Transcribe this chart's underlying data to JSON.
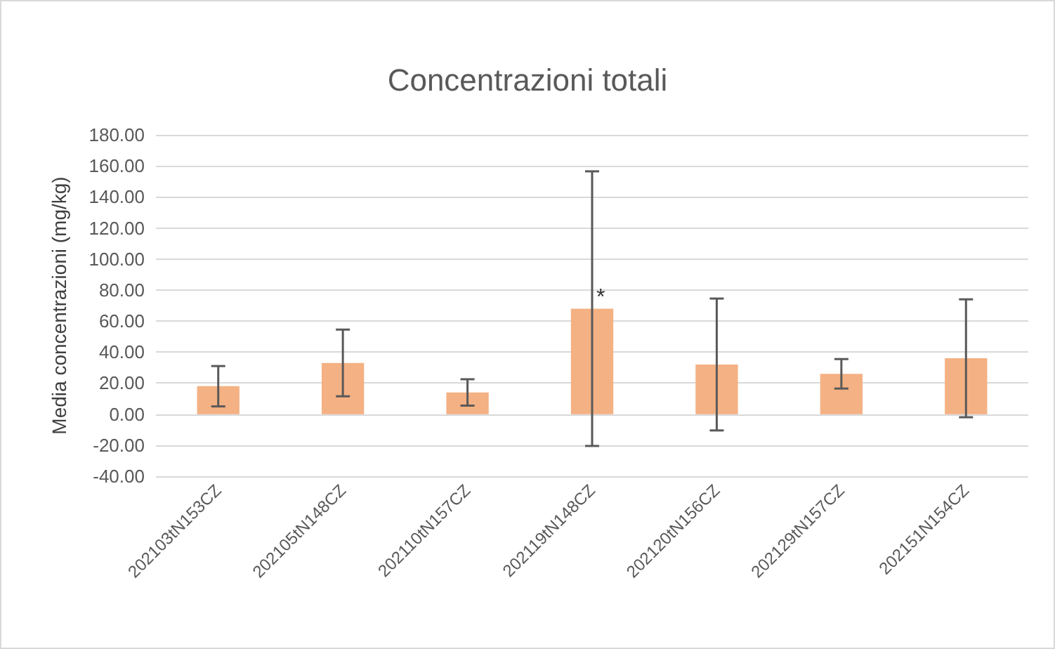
{
  "chart_data": {
    "type": "bar",
    "title": "Concentrazioni totali",
    "ylabel": "Media concentrazioni (mg/kg)",
    "categories": [
      "202103tN153CZ",
      "202105tN148CZ",
      "202110tN157CZ",
      "202119tN148CZ",
      "202120tN156CZ",
      "202129tN157CZ",
      "202151N154CZ"
    ],
    "values": [
      18,
      33,
      14,
      68,
      32,
      26,
      36
    ],
    "errors": [
      13,
      21.5,
      8.5,
      88.5,
      42.5,
      9.5,
      38
    ],
    "color": "#f4b183",
    "ylim": [
      -40,
      180
    ],
    "yticks": [
      {
        "value": -40,
        "label": "-40.00"
      },
      {
        "value": -20,
        "label": "-20.00"
      },
      {
        "value": 0,
        "label": "0.00"
      },
      {
        "value": 20,
        "label": "20.00"
      },
      {
        "value": 40,
        "label": "40.00"
      },
      {
        "value": 60,
        "label": "60.00"
      },
      {
        "value": 80,
        "label": "80.00"
      },
      {
        "value": 100,
        "label": "100.00"
      },
      {
        "value": 120,
        "label": "120.00"
      },
      {
        "value": 140,
        "label": "140.00"
      },
      {
        "value": 160,
        "label": "160.00"
      },
      {
        "value": 180,
        "label": "180.00"
      }
    ],
    "annotations": [
      {
        "text": "*",
        "x": "202119tN148CZ",
        "y": 75
      }
    ],
    "grid": "y"
  }
}
